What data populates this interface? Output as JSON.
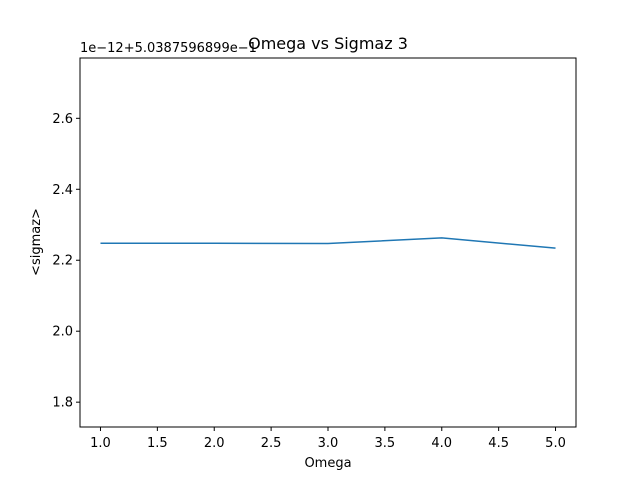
{
  "chart_data": {
    "type": "line",
    "title": "Omega vs Sigmaz 3",
    "xlabel": "Omega",
    "ylabel": "<sigmaz>",
    "y_offset_text": "1e−12+5.0387596899e−1",
    "xlim": [
      0.82,
      5.18
    ],
    "ylim": [
      1.73,
      2.77
    ],
    "x_ticks": [
      1.0,
      1.5,
      2.0,
      2.5,
      3.0,
      3.5,
      4.0,
      4.5,
      5.0
    ],
    "x_tick_labels": [
      "1.0",
      "1.5",
      "2.0",
      "2.5",
      "3.0",
      "3.5",
      "4.0",
      "4.5",
      "5.0"
    ],
    "y_ticks": [
      1.8,
      2.0,
      2.2,
      2.4,
      2.6
    ],
    "y_tick_labels": [
      "1.8",
      "2.0",
      "2.2",
      "2.4",
      "2.6"
    ],
    "grid": false,
    "series": [
      {
        "color": "#1f77b4",
        "x": [
          1,
          2,
          3,
          4,
          5
        ],
        "y": [
          2.248,
          2.248,
          2.247,
          2.263,
          2.234
        ]
      }
    ]
  }
}
